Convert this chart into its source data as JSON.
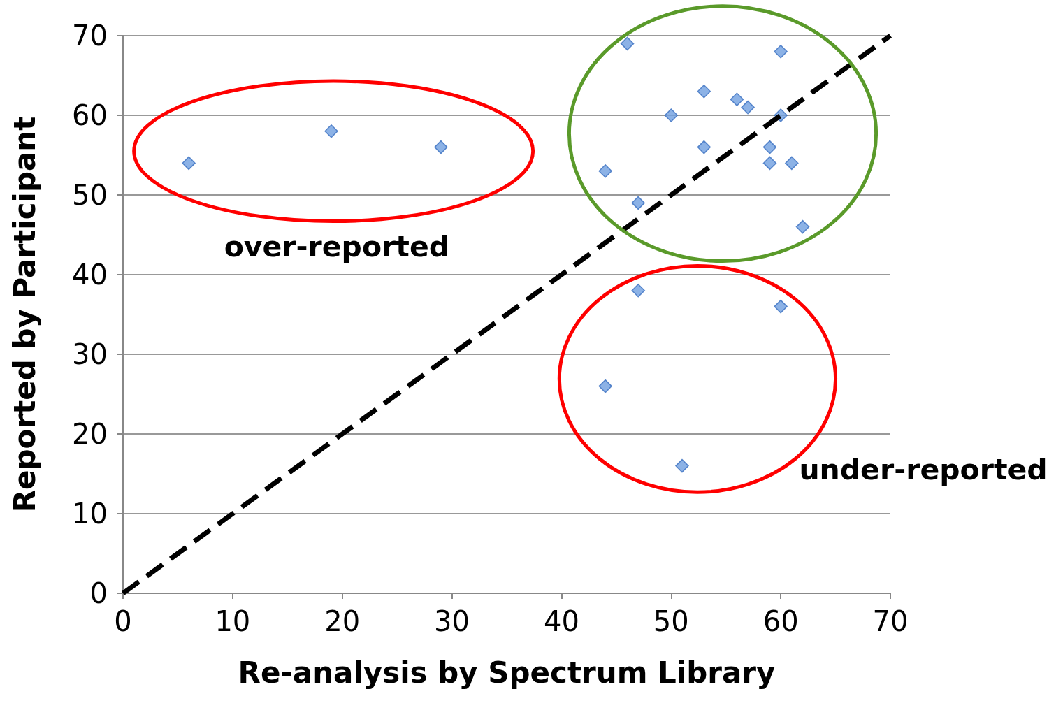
{
  "chart_data": {
    "type": "scatter",
    "xlabel": "Re-analysis by Spectrum Library",
    "ylabel": "Reported by Participant",
    "xlim": [
      0,
      70
    ],
    "xticks": [
      0,
      10,
      20,
      30,
      40,
      50,
      60,
      70
    ],
    "ylim": [
      0,
      70
    ],
    "yticks": [
      0,
      10,
      20,
      30,
      40,
      50,
      60,
      70
    ],
    "grid": "y",
    "annotations": [
      "over-reported",
      "under-reported"
    ],
    "series": [
      {
        "color": "#6f9fe0",
        "marker": "diamond",
        "x": [
          6,
          19,
          29,
          46,
          60,
          50,
          53,
          56,
          57,
          60,
          53,
          59,
          59,
          61,
          44,
          47,
          62,
          47,
          60,
          44,
          51
        ],
        "values": [
          54,
          58,
          56,
          69,
          68,
          60,
          63,
          62,
          61,
          60,
          56,
          56,
          54,
          54,
          53,
          49,
          46,
          38,
          36,
          26,
          16
        ]
      },
      {
        "type": "line",
        "color": "#000000",
        "marker": "none",
        "line_style": "dashed",
        "x": [
          0,
          70
        ],
        "values": [
          0,
          70
        ]
      }
    ]
  }
}
